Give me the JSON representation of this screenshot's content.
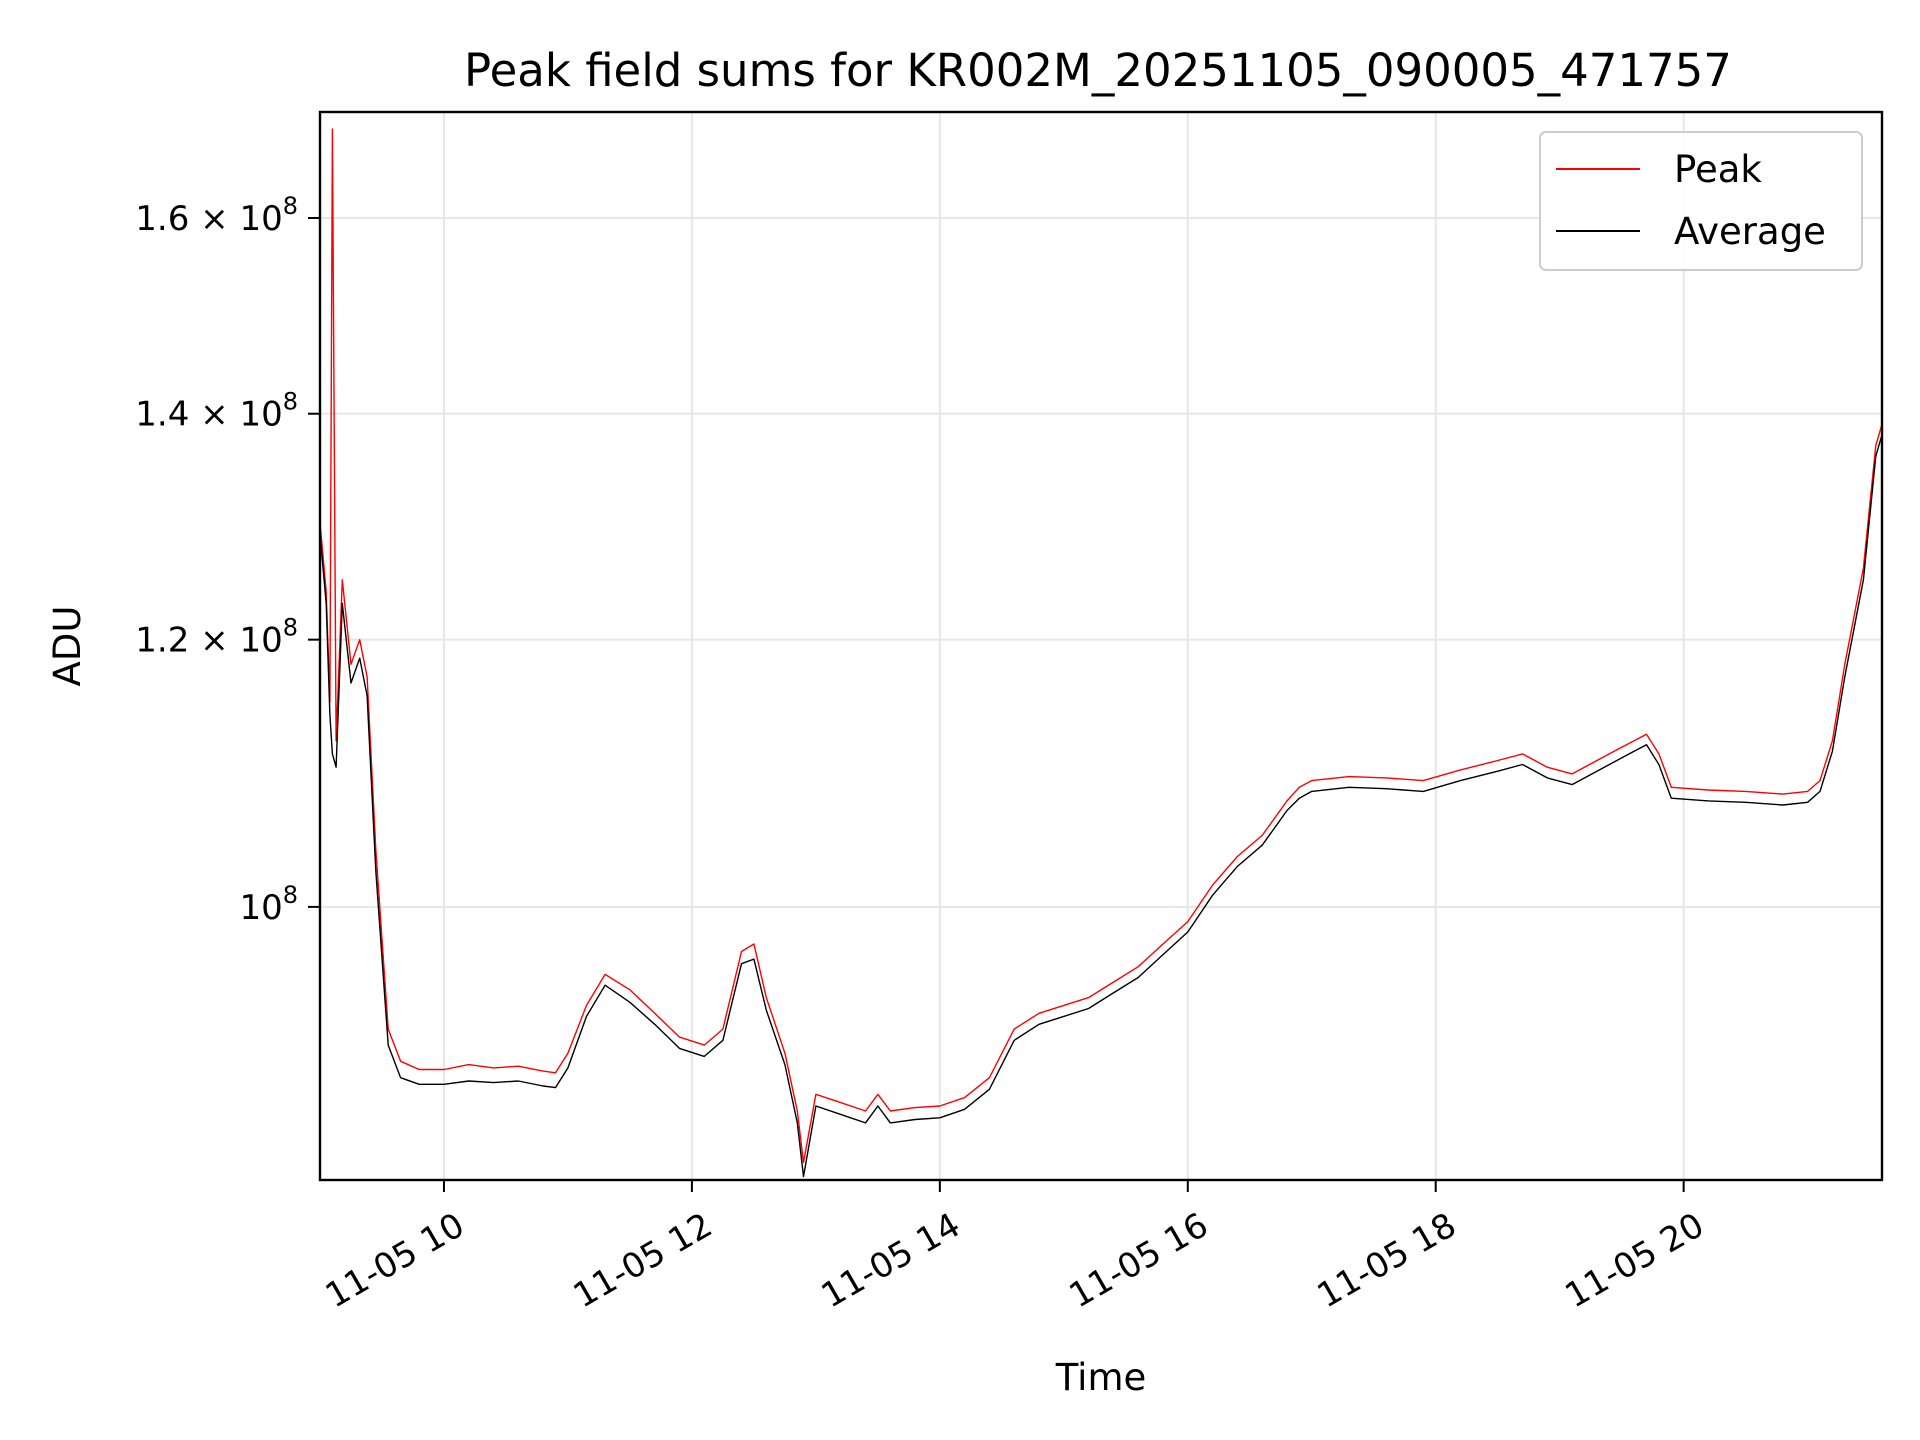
{
  "chart_data": {
    "type": "line",
    "title": "Peak field sums for KR002M_20251105_090005_471757",
    "xlabel": "Time",
    "ylabel": "ADU",
    "x_unit": "hour of 2025-11-05",
    "xlim": [
      9.0,
      21.6
    ],
    "ylim": [
      83000000,
      172000000
    ],
    "y_scale": "log",
    "grid": true,
    "legend_position": "top-right",
    "x_ticks": [
      {
        "value": 10,
        "label": "11-05 10"
      },
      {
        "value": 12,
        "label": "11-05 12"
      },
      {
        "value": 14,
        "label": "11-05 14"
      },
      {
        "value": 16,
        "label": "11-05 16"
      },
      {
        "value": 18,
        "label": "11-05 18"
      },
      {
        "value": 20,
        "label": "11-05 20"
      }
    ],
    "y_ticks": [
      {
        "value": 100000000,
        "mantissa": "",
        "base": "10",
        "exp": "8"
      },
      {
        "value": 120000000,
        "mantissa": "1.2 × ",
        "base": "10",
        "exp": "8"
      },
      {
        "value": 140000000,
        "mantissa": "1.4 × ",
        "base": "10",
        "exp": "8"
      },
      {
        "value": 160000000,
        "mantissa": "1.6 × ",
        "base": "10",
        "exp": "8"
      }
    ],
    "series": [
      {
        "name": "Peak",
        "color": "#ff0000",
        "x": [
          9.0,
          9.05,
          9.08,
          9.1,
          9.13,
          9.18,
          9.25,
          9.32,
          9.38,
          9.45,
          9.55,
          9.65,
          9.8,
          10.0,
          10.2,
          10.4,
          10.6,
          10.8,
          10.9,
          11.0,
          11.15,
          11.3,
          11.5,
          11.7,
          11.9,
          12.1,
          12.25,
          12.4,
          12.5,
          12.6,
          12.75,
          12.85,
          12.9,
          13.0,
          13.2,
          13.4,
          13.5,
          13.6,
          13.8,
          14.0,
          14.2,
          14.4,
          14.6,
          14.8,
          15.0,
          15.2,
          15.4,
          15.6,
          15.8,
          16.0,
          16.2,
          16.4,
          16.6,
          16.8,
          16.9,
          17.0,
          17.3,
          17.6,
          17.9,
          18.2,
          18.5,
          18.7,
          18.9,
          19.1,
          19.3,
          19.5,
          19.6,
          19.7,
          19.8,
          19.9,
          20.2,
          20.5,
          20.8,
          21.0,
          21.1,
          21.2,
          21.3,
          21.45,
          21.55,
          21.6
        ],
        "y": [
          130000000,
          124000000,
          115000000,
          170000000,
          112000000,
          125000000,
          118000000,
          120000000,
          117000000,
          104000000,
          92000000,
          90000000,
          89500000,
          89500000,
          89800000,
          89600000,
          89700000,
          89400000,
          89300000,
          90500000,
          93500000,
          95500000,
          94500000,
          93000000,
          91500000,
          91000000,
          92000000,
          97000000,
          97500000,
          94000000,
          90500000,
          87000000,
          84000000,
          88000000,
          87500000,
          87000000,
          88000000,
          87000000,
          87200000,
          87300000,
          87800000,
          89000000,
          92000000,
          93000000,
          93500000,
          94000000,
          95000000,
          96000000,
          97500000,
          99000000,
          101500000,
          103500000,
          105000000,
          107500000,
          108500000,
          109000000,
          109300000,
          109200000,
          109000000,
          109800000,
          110500000,
          111000000,
          110000000,
          109500000,
          110500000,
          111500000,
          112000000,
          112500000,
          111000000,
          108500000,
          108300000,
          108200000,
          108000000,
          108200000,
          109000000,
          112000000,
          118000000,
          126000000,
          137000000,
          139000000
        ]
      },
      {
        "name": "Average",
        "color": "#000000",
        "x": [
          9.0,
          9.05,
          9.08,
          9.1,
          9.13,
          9.18,
          9.25,
          9.32,
          9.38,
          9.45,
          9.55,
          9.65,
          9.8,
          10.0,
          10.2,
          10.4,
          10.6,
          10.8,
          10.9,
          11.0,
          11.15,
          11.3,
          11.5,
          11.7,
          11.9,
          12.1,
          12.25,
          12.4,
          12.5,
          12.6,
          12.75,
          12.85,
          12.9,
          13.0,
          13.2,
          13.4,
          13.5,
          13.6,
          13.8,
          14.0,
          14.2,
          14.4,
          14.6,
          14.8,
          15.0,
          15.2,
          15.4,
          15.6,
          15.8,
          16.0,
          16.2,
          16.4,
          16.6,
          16.8,
          16.9,
          17.0,
          17.3,
          17.6,
          17.9,
          18.2,
          18.5,
          18.7,
          18.9,
          19.1,
          19.3,
          19.5,
          19.6,
          19.7,
          19.8,
          19.9,
          20.2,
          20.5,
          20.8,
          21.0,
          21.1,
          21.2,
          21.3,
          21.45,
          21.55,
          21.6
        ],
        "y": [
          129000000,
          123000000,
          114000000,
          111000000,
          110000000,
          123000000,
          116500000,
          118500000,
          115500000,
          102500000,
          91000000,
          89000000,
          88600000,
          88600000,
          88800000,
          88700000,
          88800000,
          88500000,
          88400000,
          89600000,
          92800000,
          94800000,
          93700000,
          92300000,
          90800000,
          90300000,
          91300000,
          96200000,
          96500000,
          93200000,
          89800000,
          86300000,
          83200000,
          87300000,
          86800000,
          86300000,
          87300000,
          86300000,
          86500000,
          86600000,
          87100000,
          88300000,
          91300000,
          92300000,
          92800000,
          93300000,
          94300000,
          95300000,
          96800000,
          98300000,
          100800000,
          102800000,
          104300000,
          106800000,
          107700000,
          108200000,
          108500000,
          108400000,
          108200000,
          109000000,
          109700000,
          110200000,
          109200000,
          108700000,
          109700000,
          110700000,
          111200000,
          111700000,
          110200000,
          107700000,
          107500000,
          107400000,
          107200000,
          107400000,
          108200000,
          111200000,
          117000000,
          125000000,
          136000000,
          138000000
        ]
      }
    ]
  }
}
